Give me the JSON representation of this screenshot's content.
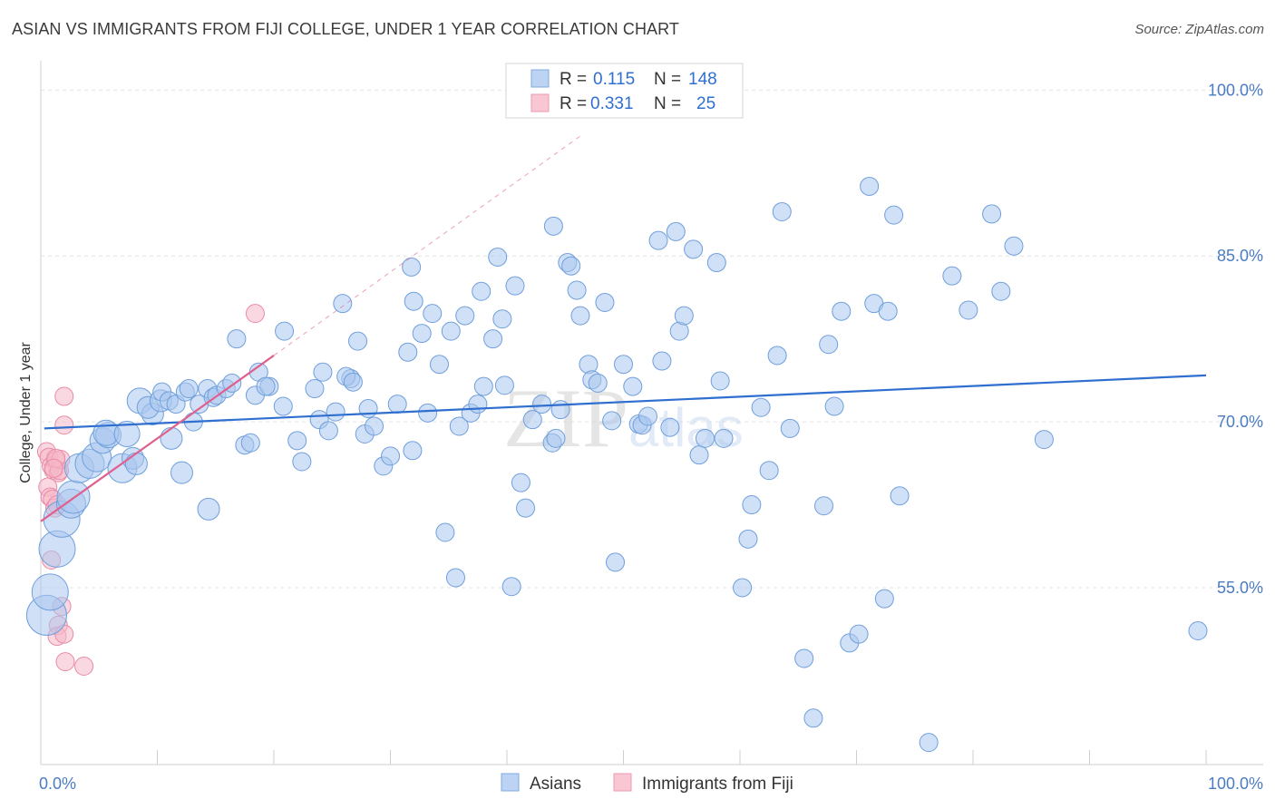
{
  "title": "ASIAN VS IMMIGRANTS FROM FIJI COLLEGE, UNDER 1 YEAR CORRELATION CHART",
  "source": "Source: ZipAtlas.com",
  "watermark": "ZIPatlas",
  "legend": {
    "rows": [
      {
        "r_label": "R =",
        "r_value": "0.115",
        "n_label": "N =",
        "n_value": "148",
        "color": "#a9c7ef"
      },
      {
        "r_label": "R =",
        "r_value": "0.331",
        "n_label": "N =",
        "n_value": "25",
        "color": "#f5b8c8"
      }
    ]
  },
  "bottom_legend": [
    {
      "label": "Asians",
      "color": "#a9c7ef"
    },
    {
      "label": "Immigrants from Fiji",
      "color": "#f5b8c8"
    }
  ],
  "chart_data": {
    "type": "scatter",
    "ylabel": "College, Under 1 year",
    "xlim": [
      0,
      100
    ],
    "ylim": [
      39,
      102
    ],
    "x_tick_labels": [
      {
        "v": 0,
        "label": "0.0%"
      },
      {
        "v": 100,
        "label": "100.0%"
      }
    ],
    "y_tick_labels": [
      {
        "v": 100,
        "label": "100.0%"
      },
      {
        "v": 85,
        "label": "85.0%"
      },
      {
        "v": 70,
        "label": "70.0%"
      },
      {
        "v": 55,
        "label": "55.0%"
      }
    ],
    "grid": true,
    "series": [
      {
        "name": "Asians",
        "color": "#a9c7ef",
        "stroke": "#6f9fdc",
        "trend": {
          "x0": 0.3,
          "y0": 69.4,
          "x1": 100,
          "y1": 74.2,
          "color": "#2f6fd0"
        },
        "points": [
          [
            0.5,
            52.5,
            22
          ],
          [
            0.8,
            54.6,
            20
          ],
          [
            1.4,
            58.5,
            20
          ],
          [
            1.8,
            61.2,
            20
          ],
          [
            2.6,
            62.6,
            16
          ],
          [
            2.8,
            63.2,
            18
          ],
          [
            3.3,
            65.8,
            16
          ],
          [
            4.2,
            66.2,
            16
          ],
          [
            4.8,
            66.8,
            16
          ],
          [
            7.0,
            65.8,
            16
          ],
          [
            5.3,
            68.3,
            14
          ],
          [
            5.8,
            68.8,
            14
          ],
          [
            5.6,
            69.0,
            14
          ],
          [
            7.4,
            68.9,
            14
          ],
          [
            7.9,
            66.7,
            12
          ],
          [
            8.2,
            66.2,
            12
          ],
          [
            8.5,
            71.9,
            14
          ],
          [
            9.6,
            70.7,
            12
          ],
          [
            9.2,
            71.3,
            12
          ],
          [
            10.3,
            71.9,
            12
          ],
          [
            10.4,
            72.7,
            10
          ],
          [
            11.2,
            68.5,
            12
          ],
          [
            11.0,
            71.9,
            10
          ],
          [
            11.6,
            71.6,
            10
          ],
          [
            12.1,
            65.4,
            12
          ],
          [
            12.4,
            72.7,
            10
          ],
          [
            12.7,
            73.0,
            10
          ],
          [
            13.1,
            70.0,
            10
          ],
          [
            13.6,
            71.6,
            10
          ],
          [
            14.3,
            73.0,
            10
          ],
          [
            14.8,
            72.2,
            10
          ],
          [
            15.1,
            72.4,
            10
          ],
          [
            15.9,
            73.0,
            10
          ],
          [
            16.4,
            73.5,
            10
          ],
          [
            14.4,
            62.1,
            12
          ],
          [
            16.8,
            77.5,
            10
          ],
          [
            17.5,
            67.9,
            10
          ],
          [
            18.0,
            68.1,
            10
          ],
          [
            18.4,
            72.4,
            10
          ],
          [
            18.7,
            74.5,
            10
          ],
          [
            19.6,
            73.2,
            10
          ],
          [
            19.3,
            73.2,
            10
          ],
          [
            20.8,
            71.4,
            10
          ],
          [
            20.9,
            78.2,
            10
          ],
          [
            22.0,
            68.3,
            10
          ],
          [
            22.4,
            66.4,
            10
          ],
          [
            23.5,
            73.0,
            10
          ],
          [
            23.9,
            70.2,
            10
          ],
          [
            24.2,
            74.5,
            10
          ],
          [
            24.7,
            69.2,
            10
          ],
          [
            25.3,
            70.9,
            10
          ],
          [
            25.9,
            80.7,
            10
          ],
          [
            26.6,
            73.9,
            10
          ],
          [
            26.2,
            74.1,
            10
          ],
          [
            26.8,
            73.6,
            10
          ],
          [
            27.2,
            77.3,
            10
          ],
          [
            27.8,
            68.9,
            10
          ],
          [
            28.1,
            71.2,
            10
          ],
          [
            28.6,
            69.6,
            10
          ],
          [
            29.4,
            66.0,
            10
          ],
          [
            30.0,
            66.9,
            10
          ],
          [
            30.6,
            71.6,
            10
          ],
          [
            31.5,
            76.3,
            10
          ],
          [
            31.9,
            67.4,
            10
          ],
          [
            31.8,
            84.0,
            10
          ],
          [
            32.0,
            80.9,
            10
          ],
          [
            32.7,
            78.0,
            10
          ],
          [
            33.2,
            70.8,
            10
          ],
          [
            33.6,
            79.8,
            10
          ],
          [
            34.2,
            75.2,
            10
          ],
          [
            34.7,
            60.0,
            10
          ],
          [
            35.2,
            78.2,
            10
          ],
          [
            35.6,
            55.9,
            10
          ],
          [
            35.9,
            69.6,
            10
          ],
          [
            36.4,
            79.6,
            10
          ],
          [
            36.9,
            70.8,
            10
          ],
          [
            37.5,
            71.6,
            10
          ],
          [
            37.8,
            81.8,
            10
          ],
          [
            38.0,
            73.2,
            10
          ],
          [
            38.8,
            77.5,
            10
          ],
          [
            39.2,
            84.9,
            10
          ],
          [
            39.6,
            79.3,
            10
          ],
          [
            39.8,
            73.3,
            10
          ],
          [
            40.4,
            55.1,
            10
          ],
          [
            40.7,
            82.3,
            10
          ],
          [
            41.2,
            64.5,
            10
          ],
          [
            41.6,
            62.2,
            10
          ],
          [
            42.2,
            70.2,
            10
          ],
          [
            43.0,
            71.6,
            10
          ],
          [
            44.0,
            87.7,
            10
          ],
          [
            43.9,
            68.1,
            10
          ],
          [
            44.2,
            68.5,
            10
          ],
          [
            44.6,
            71.1,
            10
          ],
          [
            45.2,
            84.4,
            10
          ],
          [
            45.5,
            84.1,
            10
          ],
          [
            46.0,
            81.9,
            10
          ],
          [
            46.3,
            79.6,
            10
          ],
          [
            47.0,
            75.2,
            10
          ],
          [
            47.3,
            73.8,
            10
          ],
          [
            47.8,
            73.5,
            10
          ],
          [
            48.4,
            80.8,
            10
          ],
          [
            49.0,
            70.1,
            10
          ],
          [
            49.3,
            57.3,
            10
          ],
          [
            50.0,
            75.2,
            10
          ],
          [
            50.8,
            73.2,
            10
          ],
          [
            51.3,
            69.8,
            10
          ],
          [
            51.6,
            69.7,
            10
          ],
          [
            52.1,
            70.5,
            10
          ],
          [
            53.0,
            86.4,
            10
          ],
          [
            53.3,
            75.5,
            10
          ],
          [
            54.0,
            69.5,
            10
          ],
          [
            54.5,
            87.2,
            10
          ],
          [
            54.8,
            78.2,
            10
          ],
          [
            55.2,
            79.6,
            10
          ],
          [
            56.0,
            85.6,
            10
          ],
          [
            56.5,
            67.0,
            10
          ],
          [
            57.0,
            68.5,
            10
          ],
          [
            58.0,
            84.4,
            10
          ],
          [
            58.3,
            73.7,
            10
          ],
          [
            58.6,
            68.5,
            10
          ],
          [
            60.2,
            55.0,
            10
          ],
          [
            60.7,
            59.4,
            10
          ],
          [
            61.0,
            62.5,
            10
          ],
          [
            61.8,
            71.3,
            10
          ],
          [
            62.5,
            65.6,
            10
          ],
          [
            63.2,
            76.0,
            10
          ],
          [
            63.6,
            89.0,
            10
          ],
          [
            64.3,
            69.4,
            10
          ],
          [
            65.5,
            48.6,
            10
          ],
          [
            66.3,
            43.2,
            10
          ],
          [
            67.2,
            62.4,
            10
          ],
          [
            67.6,
            77.0,
            10
          ],
          [
            68.1,
            71.4,
            10
          ],
          [
            68.7,
            80.0,
            10
          ],
          [
            69.4,
            50.0,
            10
          ],
          [
            70.2,
            50.8,
            10
          ],
          [
            71.1,
            91.3,
            10
          ],
          [
            71.5,
            80.7,
            10
          ],
          [
            72.4,
            54.0,
            10
          ],
          [
            72.7,
            80.0,
            10
          ],
          [
            73.2,
            88.7,
            10
          ],
          [
            73.7,
            63.3,
            10
          ],
          [
            76.2,
            41.0,
            10
          ],
          [
            78.2,
            83.2,
            10
          ],
          [
            79.6,
            80.1,
            10
          ],
          [
            81.6,
            88.8,
            10
          ],
          [
            82.4,
            81.8,
            10
          ],
          [
            83.5,
            85.9,
            10
          ],
          [
            86.1,
            68.4,
            10
          ],
          [
            99.3,
            51.1,
            10
          ]
        ]
      },
      {
        "name": "Immigrants from Fiji",
        "color": "#f5b8c8",
        "stroke": "#e98aa6",
        "trend": {
          "x0": 0.0,
          "y0": 61.0,
          "x1": 20.0,
          "y1": 76.0,
          "color": "#e0608f",
          "dash_to_x": 46.5,
          "dash_to_y": 96.0
        },
        "points": [
          [
            0.5,
            67.3,
            10
          ],
          [
            0.7,
            66.8,
            10
          ],
          [
            0.9,
            66.0,
            10
          ],
          [
            1.1,
            65.6,
            10
          ],
          [
            1.3,
            66.5,
            10
          ],
          [
            1.5,
            65.4,
            10
          ],
          [
            0.6,
            64.1,
            10
          ],
          [
            0.8,
            63.2,
            10
          ],
          [
            1.0,
            63.0,
            10
          ],
          [
            1.2,
            62.2,
            10
          ],
          [
            1.4,
            62.5,
            10
          ],
          [
            1.6,
            65.6,
            10
          ],
          [
            1.7,
            66.6,
            10
          ],
          [
            0.9,
            57.5,
            10
          ],
          [
            1.8,
            53.3,
            10
          ],
          [
            1.5,
            51.6,
            10
          ],
          [
            1.4,
            50.6,
            10
          ],
          [
            2.0,
            50.8,
            10
          ],
          [
            2.1,
            48.3,
            10
          ],
          [
            3.7,
            47.9,
            10
          ],
          [
            2.0,
            72.3,
            10
          ],
          [
            2.0,
            69.7,
            10
          ],
          [
            1.3,
            66.7,
            10
          ],
          [
            1.1,
            65.8,
            10
          ],
          [
            18.4,
            79.8,
            10
          ]
        ]
      }
    ]
  }
}
